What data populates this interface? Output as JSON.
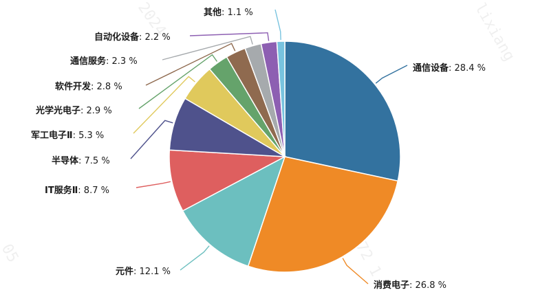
{
  "chart_data": {
    "type": "pie",
    "unit": "%",
    "slices": [
      {
        "label": "通信设备",
        "value": 28.4,
        "color": "#33729f"
      },
      {
        "label": "消费电子",
        "value": 26.8,
        "color": "#ef8a26"
      },
      {
        "label": "元件",
        "value": 12.1,
        "color": "#6cbfbf"
      },
      {
        "label": "IT服务Ⅱ",
        "value": 8.7,
        "color": "#de5f5f"
      },
      {
        "label": "半导体",
        "value": 7.5,
        "color": "#4f528c"
      },
      {
        "label": "军工电子Ⅱ",
        "value": 5.3,
        "color": "#e0c95c"
      },
      {
        "label": "光学光电子",
        "value": 2.9,
        "color": "#65a36b"
      },
      {
        "label": "软件开发",
        "value": 2.8,
        "color": "#8f6a4f"
      },
      {
        "label": "通信服务",
        "value": 2.3,
        "color": "#a6aaad"
      },
      {
        "label": "自动化设备",
        "value": 2.2,
        "color": "#8d5fb2"
      },
      {
        "label": "其他",
        "value": 1.1,
        "color": "#78c3df"
      }
    ]
  },
  "watermark": {
    "text": "lixiang1 172 1",
    "left_top": "2024-",
    "right_top": "lixiang",
    "left_bottom": "05"
  }
}
